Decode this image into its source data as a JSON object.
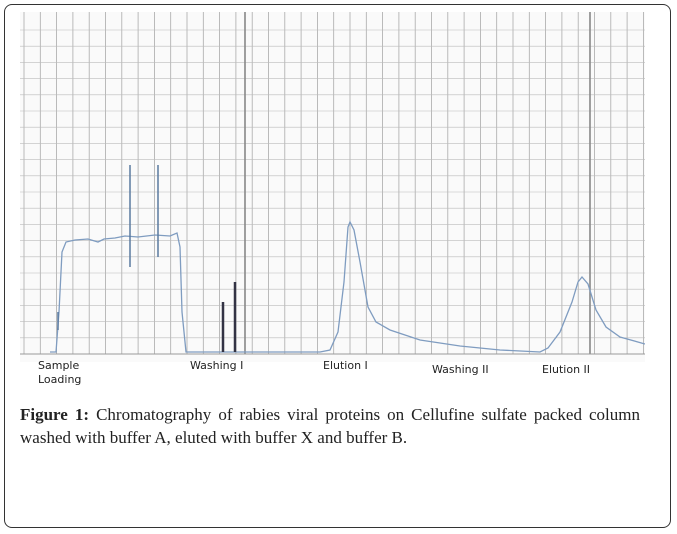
{
  "figure": {
    "panel_labels": [
      "Sample Loading",
      "Washing I",
      "Elution I",
      "Washing II",
      "Elution II"
    ],
    "caption": {
      "label": "Figure 1:",
      "text": "Chromatography of rabies viral proteins on Cellufine sulfate packed column washed with buffer A, eluted with buffer X and buffer B."
    }
  }
}
